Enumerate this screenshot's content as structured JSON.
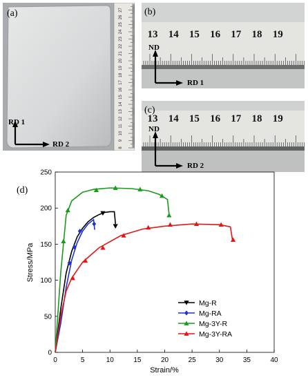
{
  "panels": {
    "a": {
      "label": "(a)",
      "rd1": "RD 1",
      "rd2": "RD 2",
      "ruler_numbers": [
        "8",
        "9",
        "10",
        "11",
        "12",
        "13",
        "14",
        "15",
        "16",
        "17",
        "18",
        "19",
        "20",
        "21",
        "22",
        "23",
        "24",
        "25",
        "26",
        "27"
      ]
    },
    "b": {
      "label": "(b)",
      "nd": "ND",
      "rd": "RD 1",
      "ruler_numbers": [
        "13",
        "14",
        "15",
        "16",
        "17",
        "18",
        "19"
      ]
    },
    "c": {
      "label": "(c)",
      "nd": "ND",
      "rd": "RD 2",
      "ruler_numbers": [
        "13",
        "14",
        "15",
        "16",
        "17",
        "18",
        "19"
      ]
    },
    "d": {
      "label": "(d)"
    }
  },
  "chart_data": {
    "type": "line",
    "xlabel": "Strain/%",
    "ylabel": "Stress/MPa",
    "xlim": [
      0,
      40
    ],
    "ylim": [
      0,
      250
    ],
    "xticks": [
      0,
      5,
      10,
      15,
      20,
      25,
      30,
      35,
      40
    ],
    "yticks": [
      0,
      50,
      100,
      150,
      200,
      250
    ],
    "legend_position": "lower-right",
    "series": [
      {
        "name": "Mg-R",
        "color": "#000000",
        "marker": "triangle-down",
        "points": [
          [
            0,
            0
          ],
          [
            1,
            60
          ],
          [
            2,
            110
          ],
          [
            3,
            140
          ],
          [
            4,
            160
          ],
          [
            5,
            172
          ],
          [
            6,
            181
          ],
          [
            7,
            187
          ],
          [
            8,
            191
          ],
          [
            9,
            194
          ],
          [
            10,
            195
          ],
          [
            10.8,
            195
          ],
          [
            11,
            178
          ]
        ],
        "markers": [
          [
            8.7,
            193
          ],
          [
            11,
            175
          ]
        ]
      },
      {
        "name": "Mg-RA",
        "color": "#1f2fd0",
        "marker": "diamond",
        "points": [
          [
            0,
            0
          ],
          [
            1,
            40
          ],
          [
            2,
            90
          ],
          [
            3,
            128
          ],
          [
            4,
            152
          ],
          [
            5,
            168
          ],
          [
            6,
            178
          ],
          [
            7,
            184
          ],
          [
            7.2,
            170
          ]
        ],
        "markers": [
          [
            2.6,
            124
          ],
          [
            3.5,
            146
          ],
          [
            4.5,
            168
          ],
          [
            7.1,
            178
          ]
        ]
      },
      {
        "name": "Mg-3Y-R",
        "color": "#1a9a1a",
        "marker": "triangle-up",
        "points": [
          [
            0,
            0
          ],
          [
            1,
            110
          ],
          [
            2,
            190
          ],
          [
            3,
            210
          ],
          [
            5,
            222
          ],
          [
            7,
            226
          ],
          [
            10,
            228
          ],
          [
            14,
            227
          ],
          [
            17,
            224
          ],
          [
            19,
            219
          ],
          [
            20.5,
            212
          ],
          [
            20.8,
            192
          ]
        ],
        "markers": [
          [
            1.5,
            154
          ],
          [
            2.3,
            197
          ],
          [
            7.5,
            225
          ],
          [
            11,
            228
          ],
          [
            15.5,
            226
          ],
          [
            19.5,
            217
          ],
          [
            20.8,
            190
          ]
        ]
      },
      {
        "name": "Mg-3Y-RA",
        "color": "#e01818",
        "marker": "triangle-up",
        "points": [
          [
            0,
            0
          ],
          [
            1,
            50
          ],
          [
            2,
            85
          ],
          [
            3,
            103
          ],
          [
            5,
            125
          ],
          [
            8,
            145
          ],
          [
            12,
            162
          ],
          [
            16,
            171
          ],
          [
            20,
            175
          ],
          [
            25,
            178
          ],
          [
            30,
            177
          ],
          [
            32,
            174
          ],
          [
            32.4,
            155
          ]
        ],
        "markers": [
          [
            3.2,
            103
          ],
          [
            5.5,
            127
          ],
          [
            8.7,
            145
          ],
          [
            12.5,
            162
          ],
          [
            17,
            173
          ],
          [
            21,
            177
          ],
          [
            25.8,
            178
          ],
          [
            30.3,
            177
          ],
          [
            32.5,
            156
          ]
        ]
      }
    ]
  }
}
